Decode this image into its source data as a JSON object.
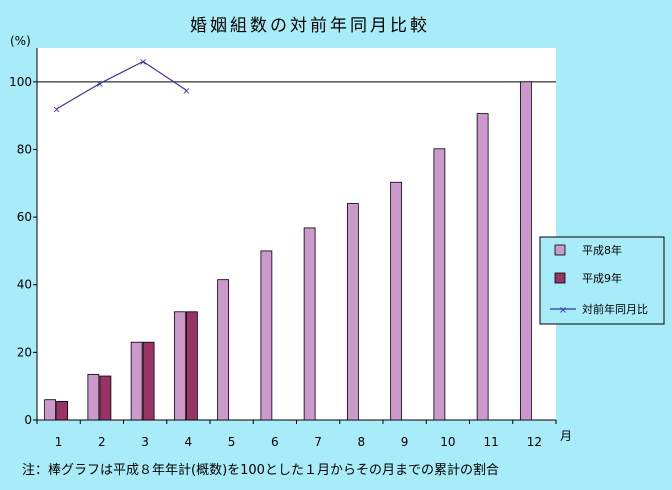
{
  "chart_data": {
    "type": "bar",
    "title": "婚姻組数の対前年同月比較",
    "ylabel": "(%)",
    "xlabel": "月",
    "ylim": [
      0,
      110
    ],
    "yticks": [
      0,
      20,
      40,
      60,
      80,
      100
    ],
    "categories": [
      "1",
      "2",
      "3",
      "4",
      "5",
      "6",
      "7",
      "8",
      "9",
      "10",
      "11",
      "12"
    ],
    "series": [
      {
        "name": "平成8年",
        "type": "bar",
        "color": "#cc99cc",
        "values": [
          6,
          13.5,
          23,
          32,
          41.5,
          50,
          56.8,
          64,
          70.3,
          80.2,
          90.6,
          100
        ]
      },
      {
        "name": "平成9年",
        "type": "bar",
        "color": "#993366",
        "values": [
          5.5,
          13,
          23,
          32,
          null,
          null,
          null,
          null,
          null,
          null,
          null,
          null
        ]
      },
      {
        "name": "対前年同月比",
        "type": "line",
        "color": "#3333aa",
        "marker": "x",
        "values": [
          92,
          99.5,
          106,
          97.5,
          null,
          null,
          null,
          null,
          null,
          null,
          null,
          null
        ]
      }
    ],
    "reference_line": 100,
    "legend_position": "right",
    "note": "注：棒グラフは平成８年年計(概数)を100とした１月からその月までの累計の割合"
  }
}
